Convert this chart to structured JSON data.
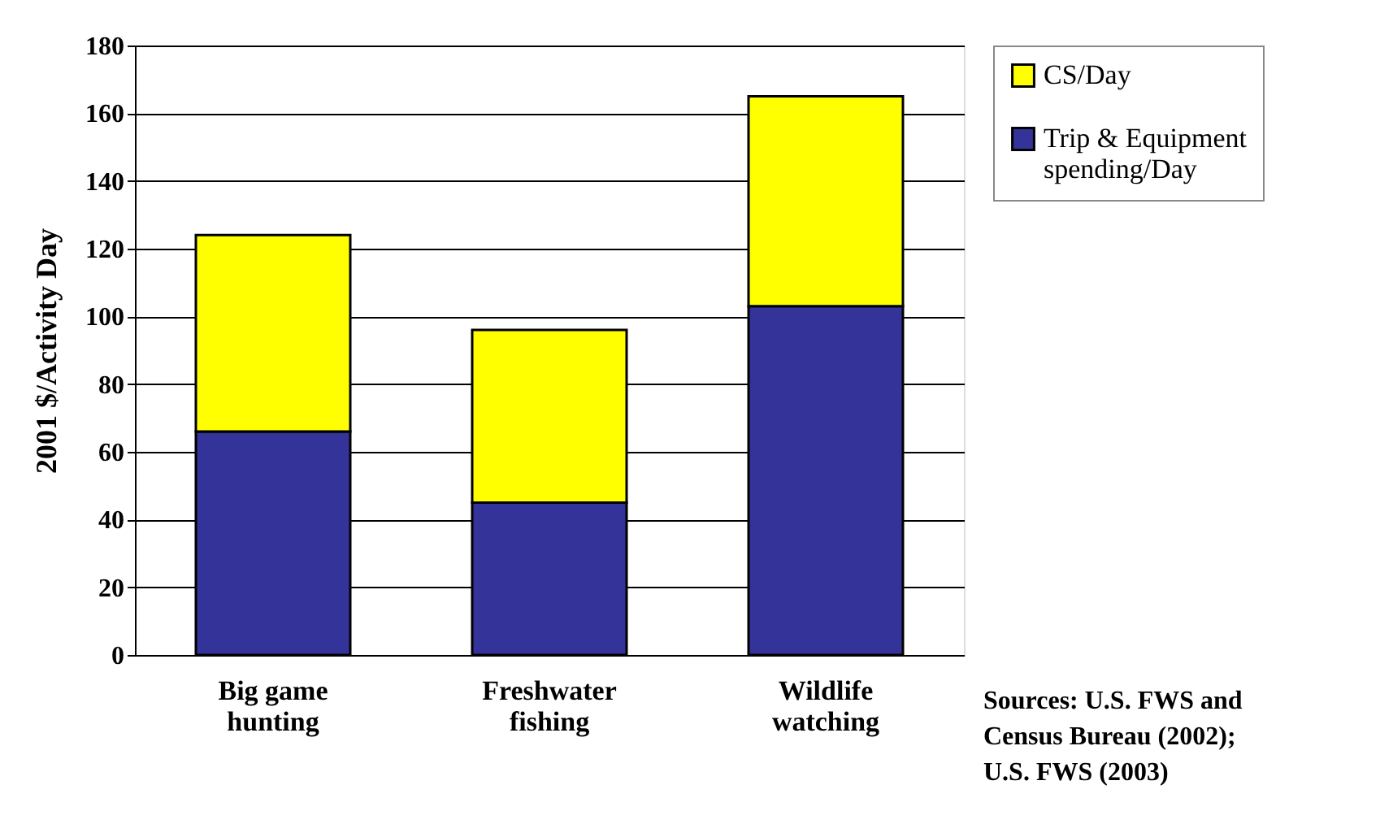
{
  "chart_data": {
    "type": "bar",
    "stacked": true,
    "ylabel": "2001 $/Activity Day",
    "categories": [
      "Big game hunting",
      "Freshwater fishing",
      "Wildlife watching"
    ],
    "series": [
      {
        "name": "Trip & Equipment spending/Day",
        "color": "#333399",
        "values": [
          66,
          45,
          103
        ]
      },
      {
        "name": "CS/Day",
        "color": "#ffff00",
        "values": [
          58,
          51,
          62
        ]
      }
    ],
    "ylim": [
      0,
      180
    ],
    "yticks": [
      0,
      20,
      40,
      60,
      80,
      100,
      120,
      140,
      160,
      180
    ],
    "grid": "y",
    "legend": "right",
    "annotations": [
      "Sources: U.S. FWS and Census Bureau (2002); U.S. FWS (2003)"
    ]
  }
}
